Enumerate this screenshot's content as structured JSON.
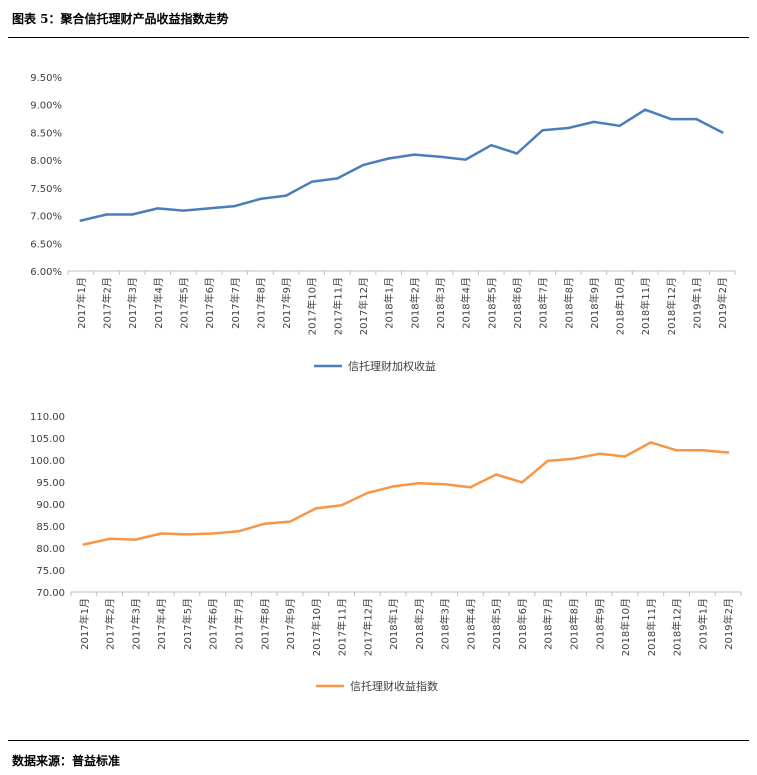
{
  "figure": {
    "title": "图表 5：聚合信托理财产品收益指数走势",
    "source": "数据来源：普益标准"
  },
  "chart_data": [
    {
      "type": "line",
      "title": "",
      "categories": [
        "2017年1月",
        "2017年2月",
        "2017年3月",
        "2017年4月",
        "2017年5月",
        "2017年6月",
        "2017年7月",
        "2017年8月",
        "2017年9月",
        "2017年10月",
        "2017年11月",
        "2017年12月",
        "2018年1月",
        "2018年2月",
        "2018年3月",
        "2018年4月",
        "2018年5月",
        "2018年6月",
        "2018年7月",
        "2018年8月",
        "2018年9月",
        "2018年10月",
        "2018年11月",
        "2018年12月",
        "2019年1月",
        "2019年2月"
      ],
      "series": [
        {
          "name": "信托理财加权收益",
          "color": "#4A7EBB",
          "values": [
            6.91,
            7.02,
            7.02,
            7.13,
            7.09,
            7.13,
            7.17,
            7.3,
            7.36,
            7.61,
            7.67,
            7.91,
            8.03,
            8.1,
            8.06,
            8.01,
            8.27,
            8.12,
            8.54,
            8.58,
            8.69,
            8.62,
            8.91,
            8.74,
            8.74,
            8.5
          ]
        }
      ],
      "yticks": [
        "6.00%",
        "6.50%",
        "7.00%",
        "7.50%",
        "8.00%",
        "8.50%",
        "9.00%",
        "9.50%"
      ],
      "ylim": [
        6.0,
        9.5
      ],
      "legend_position": "bottom-center"
    },
    {
      "type": "line",
      "title": "",
      "categories": [
        "2017年1月",
        "2017年2月",
        "2017年3月",
        "2017年4月",
        "2017年5月",
        "2017年6月",
        "2017年7月",
        "2017年8月",
        "2017年9月",
        "2017年10月",
        "2017年11月",
        "2017年12月",
        "2018年1月",
        "2018年2月",
        "2018年3月",
        "2018年4月",
        "2018年5月",
        "2018年6月",
        "2018年7月",
        "2018年8月",
        "2018年9月",
        "2018年10月",
        "2018年11月",
        "2018年12月",
        "2019年1月",
        "2019年2月"
      ],
      "series": [
        {
          "name": "信托理财收益指数",
          "color": "#F79646",
          "values": [
            80.8,
            82.1,
            81.9,
            83.3,
            83.1,
            83.3,
            83.8,
            85.5,
            86.0,
            89.0,
            89.7,
            92.5,
            94.0,
            94.7,
            94.5,
            93.8,
            96.7,
            94.9,
            99.8,
            100.3,
            101.4,
            100.8,
            104.0,
            102.2,
            102.2,
            101.7
          ]
        }
      ],
      "yticks": [
        "70.00",
        "75.00",
        "80.00",
        "85.00",
        "90.00",
        "95.00",
        "100.00",
        "105.00",
        "110.00"
      ],
      "ylim": [
        70,
        110
      ],
      "legend_position": "bottom-center"
    }
  ]
}
